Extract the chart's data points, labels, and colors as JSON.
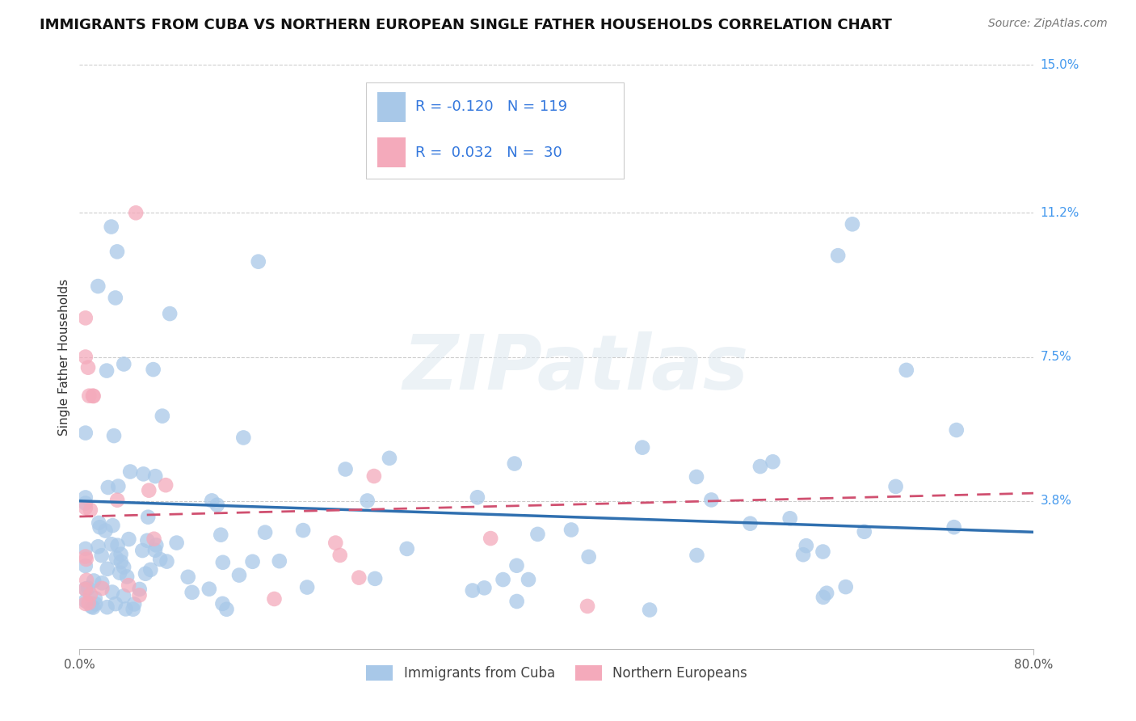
{
  "title": "IMMIGRANTS FROM CUBA VS NORTHERN EUROPEAN SINGLE FATHER HOUSEHOLDS CORRELATION CHART",
  "source": "Source: ZipAtlas.com",
  "ylabel": "Single Father Households",
  "watermark": "ZIPatlas",
  "xlim": [
    0.0,
    0.8
  ],
  "ylim": [
    0.0,
    0.15
  ],
  "ytick_labels": [
    "3.8%",
    "7.5%",
    "11.2%",
    "15.0%"
  ],
  "ytick_vals": [
    0.038,
    0.075,
    0.112,
    0.15
  ],
  "hgrid_vals": [
    0.038,
    0.075,
    0.112,
    0.15
  ],
  "color_cuba": "#a8c8e8",
  "color_ne": "#f4aabb",
  "line_color_cuba": "#3070b0",
  "line_color_ne": "#d05070",
  "title_fontsize": 13,
  "axis_label_fontsize": 11,
  "tick_fontsize": 11,
  "legend_fontsize": 13,
  "blue_label": "Immigrants from Cuba",
  "pink_label": "Northern Europeans",
  "cuba_line_x0": 0.0,
  "cuba_line_y0": 0.038,
  "cuba_line_x1": 0.8,
  "cuba_line_y1": 0.03,
  "ne_line_x0": 0.0,
  "ne_line_y0": 0.034,
  "ne_line_x1": 0.8,
  "ne_line_y1": 0.04
}
